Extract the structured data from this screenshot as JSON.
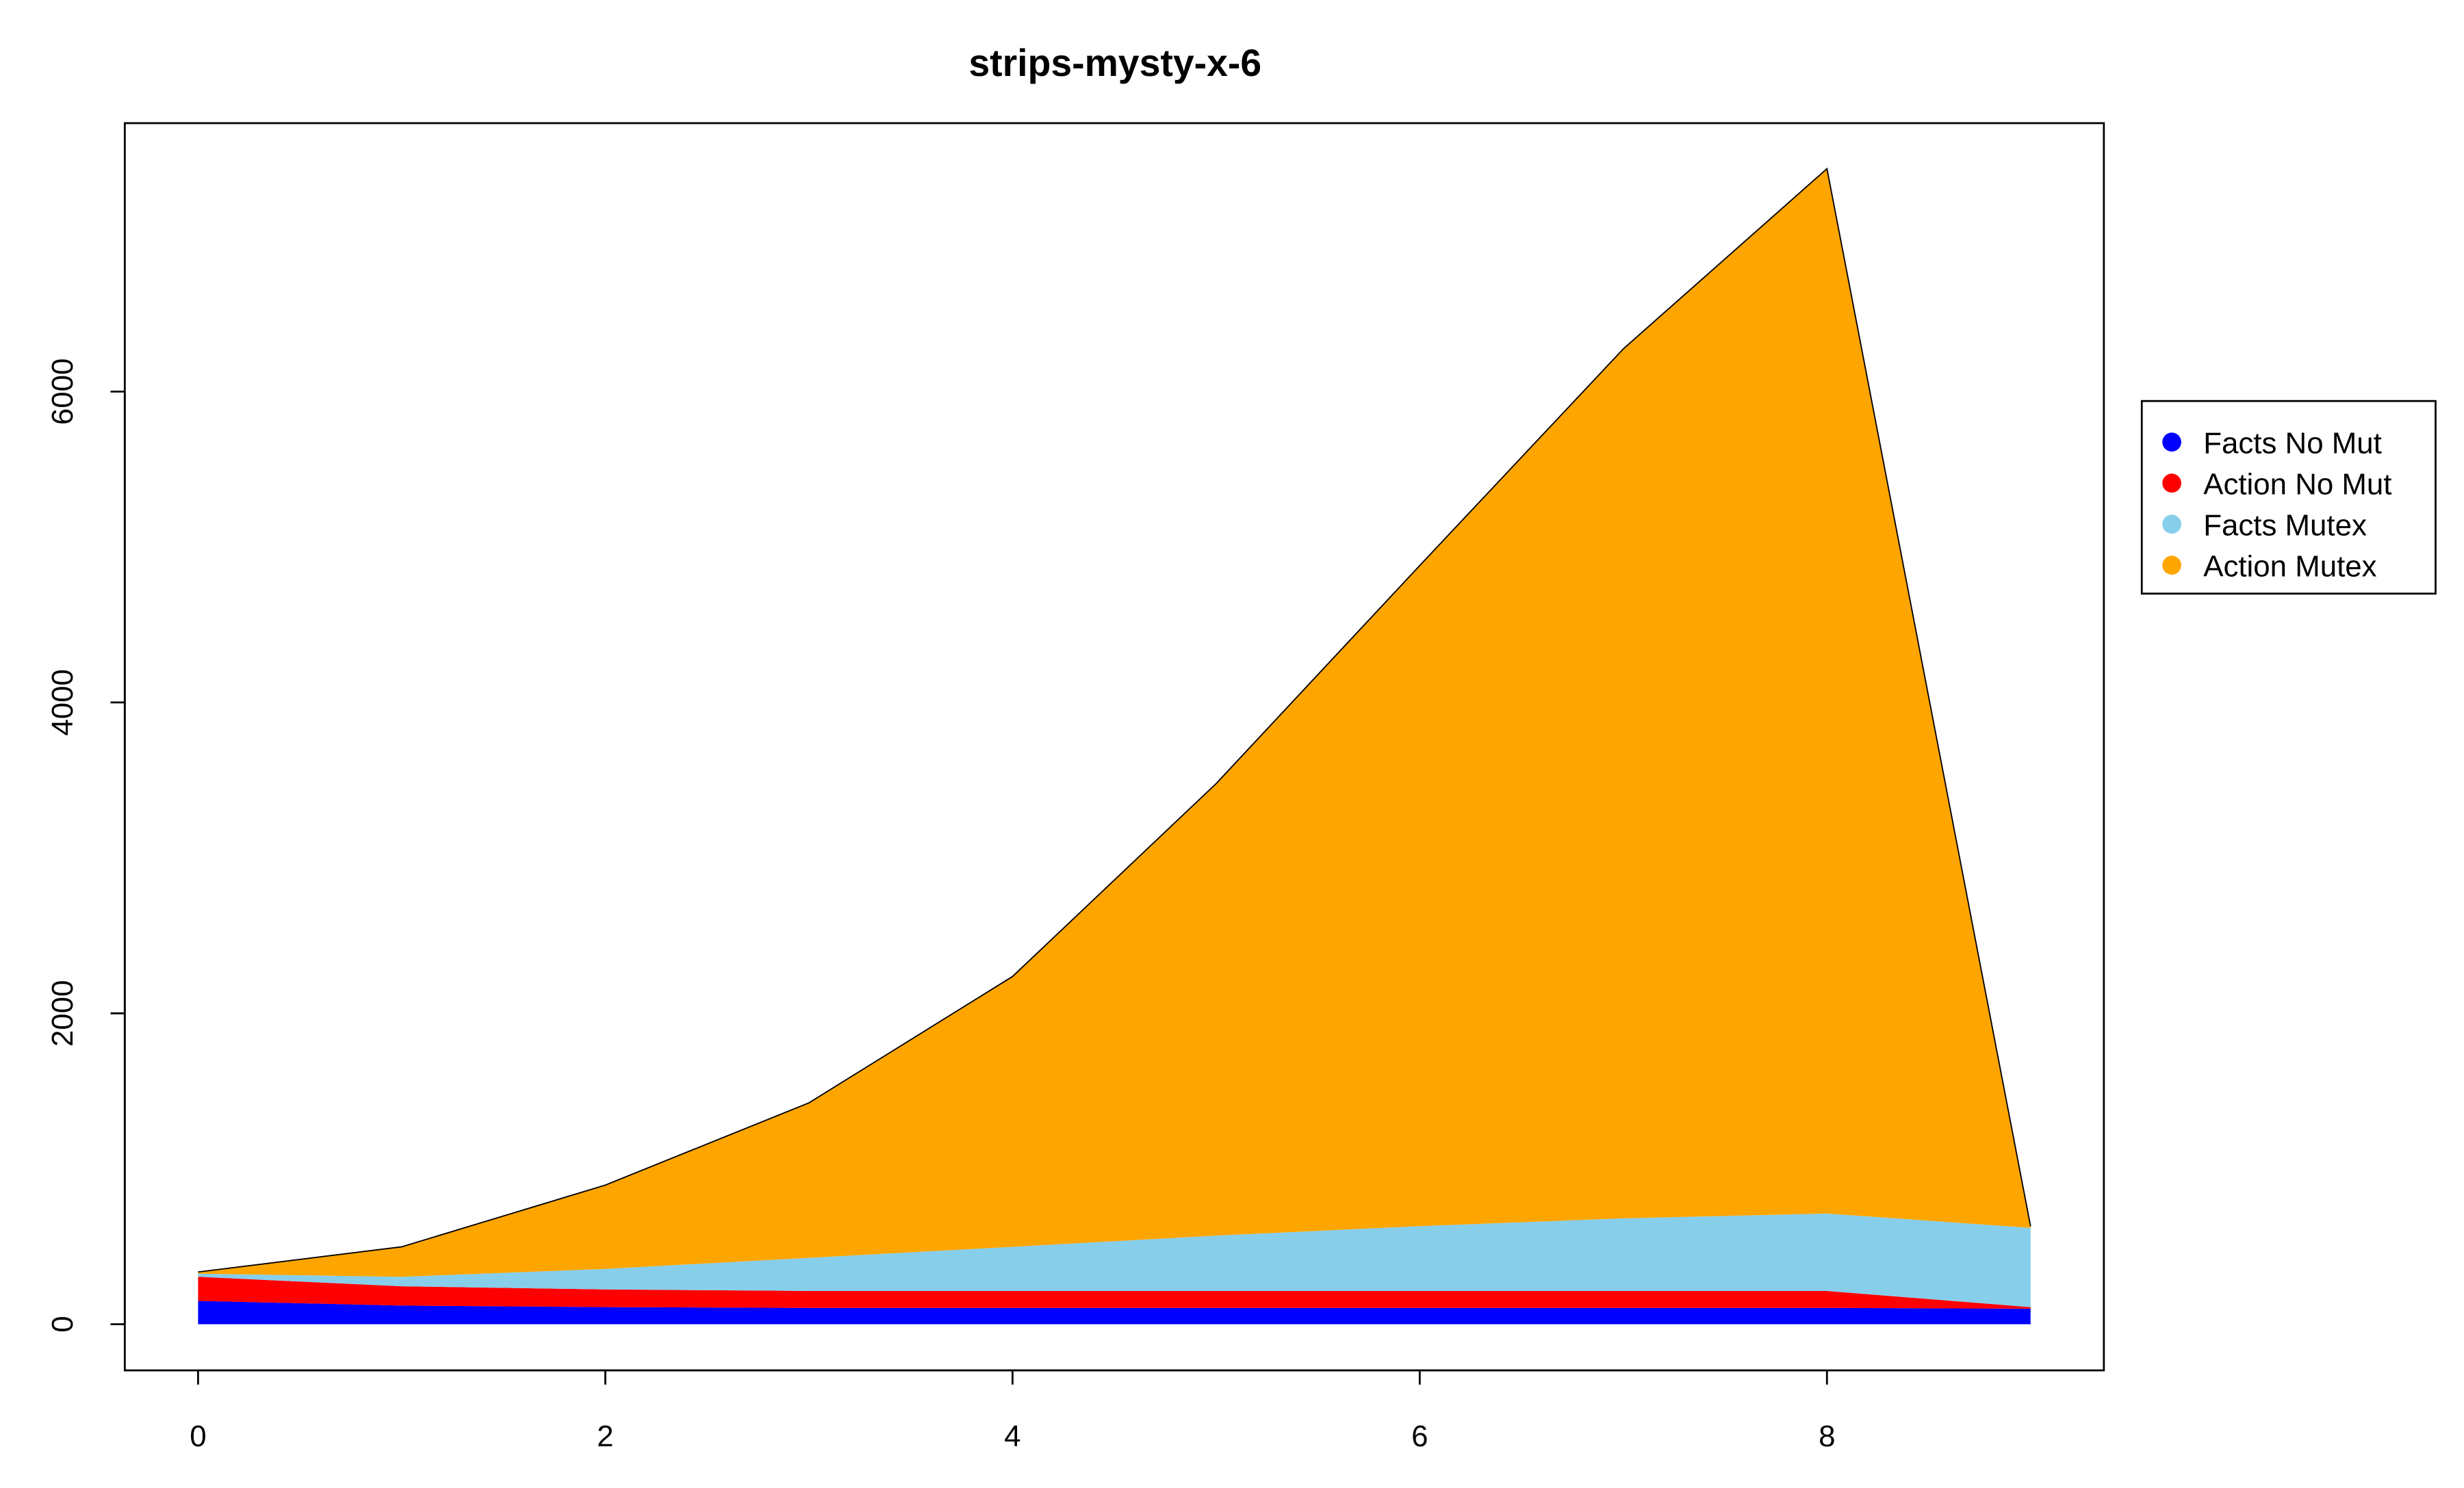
{
  "chart_data": {
    "type": "stacked-area",
    "title": "strips-mysty-x-6",
    "x": [
      0,
      1,
      2,
      3,
      4,
      5,
      6,
      7,
      8,
      9
    ],
    "series": [
      {
        "name": "Facts No Mut",
        "color": "#0000ff",
        "values": [
          150,
          120,
          110,
          105,
          105,
          105,
          105,
          105,
          105,
          100
        ]
      },
      {
        "name": "Action No Mut",
        "color": "#ff0000",
        "values": [
          155,
          124,
          114,
          109,
          109,
          109,
          109,
          109,
          109,
          10
        ]
      },
      {
        "name": "Facts Mutex",
        "color": "#87ceeb",
        "values": [
          20,
          61,
          132,
          213,
          284,
          356,
          417,
          467,
          498,
          510
        ]
      },
      {
        "name": "Action Mutex",
        "color": "#ffa500",
        "values": [
          11,
          193,
          539,
          997,
          1739,
          2908,
          4250,
          5594,
          6722,
          10
        ]
      }
    ],
    "xlim": [
      -0.36,
      9.36
    ],
    "xticks": [
      0,
      2,
      4,
      6,
      8
    ],
    "ylim": [
      -297,
      7727
    ],
    "yticks": [
      0,
      2000,
      4000,
      6000
    ],
    "legend": "right"
  }
}
